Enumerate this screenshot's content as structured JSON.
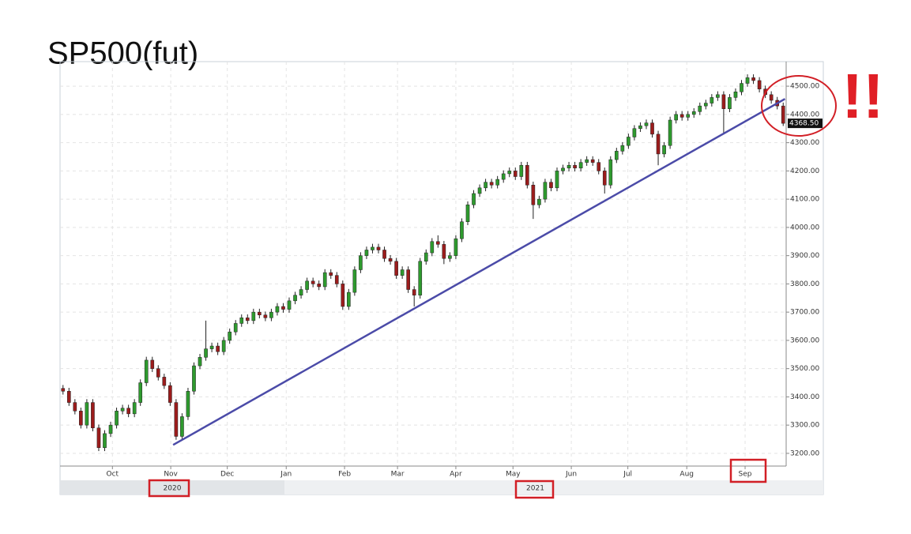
{
  "chart_data": {
    "type": "candlestick",
    "title": "SP500(fut)",
    "annotation": "!!",
    "up_color": "#2e9a2e",
    "down_color": "#9b1c1c",
    "grid": true,
    "ylim": [
      3155,
      4587
    ],
    "yticks": [
      {
        "value": 3200,
        "label": "3200.00"
      },
      {
        "value": 3300,
        "label": "3300.00"
      },
      {
        "value": 3400,
        "label": "3400.00"
      },
      {
        "value": 3500,
        "label": "3500.00"
      },
      {
        "value": 3600,
        "label": "3600.00"
      },
      {
        "value": 3700,
        "label": "3700.00"
      },
      {
        "value": 3800,
        "label": "3800.00"
      },
      {
        "value": 3900,
        "label": "3900.00"
      },
      {
        "value": 4000,
        "label": "4000.00"
      },
      {
        "value": 4100,
        "label": "4100.00"
      },
      {
        "value": 4200,
        "label": "4200.00"
      },
      {
        "value": 4300,
        "label": "4300.00"
      },
      {
        "value": 4400,
        "label": "4400.00"
      },
      {
        "value": 4500,
        "label": "4500.00"
      }
    ],
    "xlim": [
      -0.5,
      121.5
    ],
    "xticks": [
      {
        "value": 8.3,
        "label": "Oct"
      },
      {
        "value": 18.1,
        "label": "Nov"
      },
      {
        "value": 27.6,
        "label": "Dec"
      },
      {
        "value": 37.5,
        "label": "Jan"
      },
      {
        "value": 47.3,
        "label": "Feb"
      },
      {
        "value": 56.2,
        "label": "Mar"
      },
      {
        "value": 66.0,
        "label": "Apr"
      },
      {
        "value": 75.6,
        "label": "May"
      },
      {
        "value": 85.4,
        "label": "Jun"
      },
      {
        "value": 94.9,
        "label": "Jul"
      },
      {
        "value": 104.8,
        "label": "Aug"
      },
      {
        "value": 114.6,
        "label": "Sep"
      }
    ],
    "years": [
      {
        "label": "2020",
        "start": -0.5,
        "end": 37.2
      },
      {
        "label": "2021",
        "start": 37.2,
        "end": 121.5
      }
    ],
    "last_price": {
      "value": 4368.5,
      "label": "4368.50"
    },
    "trendline": {
      "x": [
        18.5,
        121.3
      ],
      "y": [
        3230,
        4455
      ],
      "color": "#4b4ba8"
    },
    "candles": [
      [
        3430,
        3442,
        3408,
        3420
      ],
      [
        3420,
        3432,
        3368,
        3380
      ],
      [
        3380,
        3392,
        3338,
        3350
      ],
      [
        3350,
        3362,
        3288,
        3300
      ],
      [
        3300,
        3392,
        3288,
        3380
      ],
      [
        3380,
        3392,
        3278,
        3290
      ],
      [
        3290,
        3302,
        3208,
        3220
      ],
      [
        3220,
        3282,
        3208,
        3270
      ],
      [
        3270,
        3312,
        3258,
        3300
      ],
      [
        3300,
        3362,
        3288,
        3350
      ],
      [
        3350,
        3372,
        3338,
        3360
      ],
      [
        3360,
        3372,
        3328,
        3340
      ],
      [
        3340,
        3392,
        3328,
        3380
      ],
      [
        3380,
        3462,
        3368,
        3450
      ],
      [
        3450,
        3542,
        3438,
        3530
      ],
      [
        3530,
        3542,
        3488,
        3500
      ],
      [
        3500,
        3512,
        3458,
        3470
      ],
      [
        3470,
        3482,
        3428,
        3440
      ],
      [
        3440,
        3452,
        3368,
        3380
      ],
      [
        3380,
        3392,
        3248,
        3260
      ],
      [
        3260,
        3342,
        3248,
        3330
      ],
      [
        3330,
        3432,
        3318,
        3420
      ],
      [
        3420,
        3522,
        3408,
        3510
      ],
      [
        3510,
        3552,
        3498,
        3540
      ],
      [
        3540,
        3670,
        3528,
        3570
      ],
      [
        3570,
        3592,
        3558,
        3580
      ],
      [
        3580,
        3592,
        3548,
        3560
      ],
      [
        3560,
        3612,
        3548,
        3600
      ],
      [
        3600,
        3642,
        3588,
        3630
      ],
      [
        3630,
        3672,
        3618,
        3660
      ],
      [
        3660,
        3692,
        3648,
        3680
      ],
      [
        3680,
        3692,
        3658,
        3670
      ],
      [
        3670,
        3712,
        3658,
        3700
      ],
      [
        3700,
        3712,
        3678,
        3690
      ],
      [
        3690,
        3702,
        3668,
        3680
      ],
      [
        3680,
        3712,
        3668,
        3700
      ],
      [
        3700,
        3732,
        3688,
        3720
      ],
      [
        3720,
        3732,
        3698,
        3710
      ],
      [
        3710,
        3752,
        3698,
        3740
      ],
      [
        3740,
        3772,
        3728,
        3760
      ],
      [
        3760,
        3792,
        3748,
        3780
      ],
      [
        3780,
        3822,
        3768,
        3810
      ],
      [
        3810,
        3822,
        3788,
        3800
      ],
      [
        3800,
        3812,
        3778,
        3790
      ],
      [
        3790,
        3852,
        3778,
        3840
      ],
      [
        3840,
        3852,
        3818,
        3830
      ],
      [
        3830,
        3842,
        3788,
        3800
      ],
      [
        3800,
        3812,
        3708,
        3720
      ],
      [
        3720,
        3782,
        3708,
        3770
      ],
      [
        3770,
        3862,
        3758,
        3850
      ],
      [
        3850,
        3912,
        3838,
        3900
      ],
      [
        3900,
        3932,
        3888,
        3920
      ],
      [
        3920,
        3942,
        3908,
        3930
      ],
      [
        3930,
        3942,
        3908,
        3920
      ],
      [
        3920,
        3932,
        3878,
        3890
      ],
      [
        3890,
        3902,
        3868,
        3880
      ],
      [
        3880,
        3892,
        3818,
        3830
      ],
      [
        3830,
        3862,
        3818,
        3850
      ],
      [
        3850,
        3862,
        3768,
        3780
      ],
      [
        3780,
        3792,
        3720,
        3760
      ],
      [
        3760,
        3892,
        3748,
        3880
      ],
      [
        3880,
        3922,
        3868,
        3910
      ],
      [
        3910,
        3962,
        3898,
        3950
      ],
      [
        3950,
        3972,
        3928,
        3940
      ],
      [
        3940,
        3952,
        3870,
        3890
      ],
      [
        3890,
        3912,
        3878,
        3900
      ],
      [
        3900,
        3972,
        3888,
        3960
      ],
      [
        3960,
        4032,
        3948,
        4020
      ],
      [
        4020,
        4092,
        4008,
        4080
      ],
      [
        4080,
        4132,
        4068,
        4120
      ],
      [
        4120,
        4152,
        4108,
        4140
      ],
      [
        4140,
        4172,
        4128,
        4160
      ],
      [
        4160,
        4172,
        4138,
        4150
      ],
      [
        4150,
        4182,
        4138,
        4170
      ],
      [
        4170,
        4202,
        4158,
        4190
      ],
      [
        4190,
        4212,
        4178,
        4200
      ],
      [
        4200,
        4212,
        4168,
        4180
      ],
      [
        4180,
        4232,
        4168,
        4220
      ],
      [
        4220,
        4232,
        4138,
        4150
      ],
      [
        4150,
        4162,
        4030,
        4080
      ],
      [
        4080,
        4112,
        4068,
        4100
      ],
      [
        4100,
        4172,
        4088,
        4160
      ],
      [
        4160,
        4172,
        4128,
        4140
      ],
      [
        4140,
        4212,
        4128,
        4200
      ],
      [
        4200,
        4222,
        4188,
        4210
      ],
      [
        4210,
        4232,
        4198,
        4220
      ],
      [
        4220,
        4232,
        4198,
        4210
      ],
      [
        4210,
        4242,
        4198,
        4230
      ],
      [
        4230,
        4252,
        4218,
        4240
      ],
      [
        4240,
        4252,
        4218,
        4230
      ],
      [
        4230,
        4242,
        4188,
        4200
      ],
      [
        4200,
        4212,
        4120,
        4150
      ],
      [
        4150,
        4252,
        4138,
        4240
      ],
      [
        4240,
        4282,
        4228,
        4270
      ],
      [
        4270,
        4302,
        4258,
        4290
      ],
      [
        4290,
        4332,
        4278,
        4320
      ],
      [
        4320,
        4362,
        4308,
        4350
      ],
      [
        4350,
        4372,
        4338,
        4360
      ],
      [
        4360,
        4382,
        4348,
        4370
      ],
      [
        4370,
        4382,
        4318,
        4330
      ],
      [
        4330,
        4342,
        4220,
        4260
      ],
      [
        4260,
        4302,
        4248,
        4290
      ],
      [
        4290,
        4392,
        4278,
        4380
      ],
      [
        4380,
        4412,
        4368,
        4400
      ],
      [
        4400,
        4412,
        4378,
        4390
      ],
      [
        4390,
        4412,
        4378,
        4400
      ],
      [
        4400,
        4422,
        4388,
        4410
      ],
      [
        4410,
        4442,
        4398,
        4430
      ],
      [
        4430,
        4452,
        4418,
        4440
      ],
      [
        4440,
        4472,
        4428,
        4460
      ],
      [
        4460,
        4482,
        4448,
        4470
      ],
      [
        4470,
        4482,
        4330,
        4420
      ],
      [
        4420,
        4472,
        4408,
        4460
      ],
      [
        4460,
        4492,
        4448,
        4480
      ],
      [
        4480,
        4522,
        4468,
        4510
      ],
      [
        4510,
        4542,
        4498,
        4530
      ],
      [
        4530,
        4542,
        4508,
        4520
      ],
      [
        4520,
        4532,
        4478,
        4490
      ],
      [
        4490,
        4502,
        4458,
        4470
      ],
      [
        4470,
        4482,
        4438,
        4450
      ],
      [
        4450,
        4462,
        4418,
        4430
      ],
      [
        4430,
        4442,
        4359,
        4368.5
      ]
    ]
  }
}
